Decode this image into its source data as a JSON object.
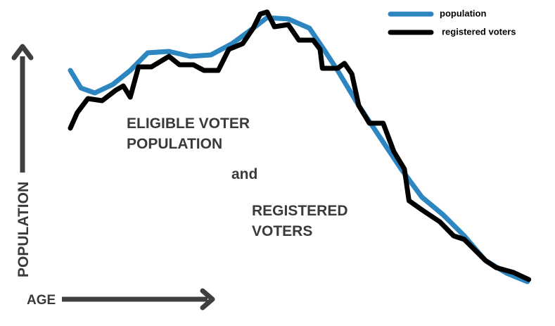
{
  "chart_data": {
    "type": "line",
    "annotations": [
      "ELIGIBLE VOTER",
      "POPULATION",
      "and",
      "REGISTERED",
      "VOTERS"
    ],
    "xlabel": "AGE",
    "ylabel": "POPULATION",
    "xlim": [
      0,
      100
    ],
    "ylim": [
      0,
      105
    ],
    "series": [
      {
        "name": "population",
        "color": "#2e86c1",
        "x": [
          0,
          2.3,
          5.3,
          9.2,
          13,
          16.8,
          21.4,
          26,
          30.5,
          35.1,
          39.7,
          42.7,
          47.3,
          51.9,
          55,
          58,
          62.6,
          67.2,
          71.8,
          76.3,
          80.9,
          85.5,
          90.1,
          94.7,
          99.2
        ],
        "values": [
          80,
          73.75,
          72,
          75,
          80,
          86.25,
          86.75,
          85,
          85.5,
          89.5,
          95,
          98.75,
          98.25,
          95,
          87.5,
          80,
          67.5,
          56.25,
          45,
          35,
          28.75,
          21.25,
          12.5,
          8,
          5
        ]
      },
      {
        "name": "registered voters",
        "color": "#000000",
        "x": [
          0,
          1.5,
          3.8,
          6.9,
          9.9,
          11.5,
          13,
          14.8,
          17.6,
          21.4,
          23.7,
          26.7,
          29,
          32.1,
          34.4,
          37.4,
          39.7,
          41.2,
          42.7,
          44.3,
          47.3,
          49.6,
          52.7,
          54.2,
          54.7,
          58,
          59.5,
          61.1,
          62.6,
          64.9,
          67.9,
          70.2,
          72.5,
          73.5,
          76.3,
          80.2,
          83.2,
          85.5,
          90.1,
          92.4,
          96.2,
          99.5
        ],
        "values": [
          59.5,
          65,
          70,
          69.25,
          73,
          74.5,
          70.5,
          81.25,
          81.25,
          85,
          82,
          82,
          80,
          80,
          87.5,
          89.5,
          95,
          100,
          100.75,
          95.5,
          96.25,
          90.75,
          90.75,
          87.5,
          80.75,
          80.75,
          82.5,
          78.75,
          67.5,
          61.25,
          61.25,
          51.25,
          45,
          33.75,
          30.5,
          26.25,
          21.25,
          20,
          12.5,
          10,
          8.25,
          5.75
        ]
      }
    ]
  }
}
